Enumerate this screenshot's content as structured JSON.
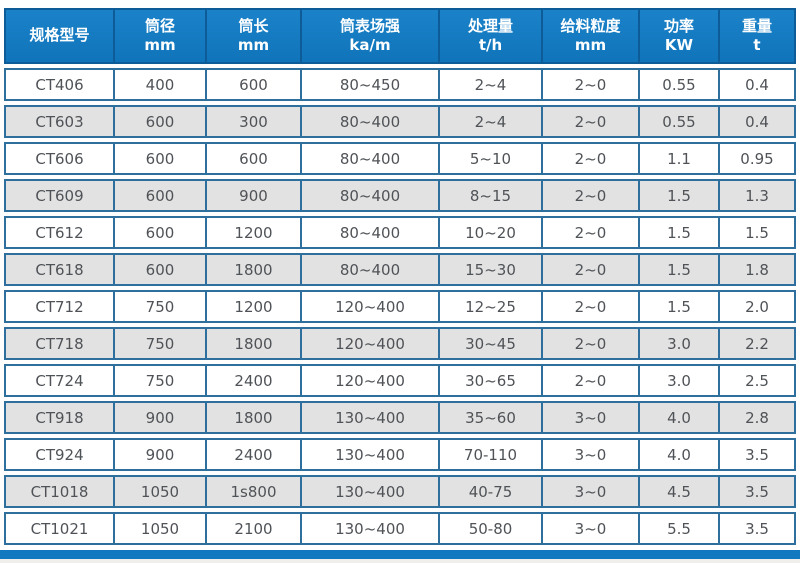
{
  "colors": {
    "page_bg": "#ffffff",
    "header_bg_top": "#1b82c9",
    "header_bg": "#1074ba",
    "header_border": "#0d5c98",
    "header_text": "#ffffff",
    "cell_border": "#2e6f9d",
    "row_bg": "#ffffff",
    "row_alt_bg": "#e3e2e2",
    "body_text": "#4f5357",
    "footer_bar": "#1278bf",
    "page_strip": "#f0eeea"
  },
  "table": {
    "columns": [
      {
        "label": "规格型号",
        "unit": ""
      },
      {
        "label": "筒径",
        "unit": "mm"
      },
      {
        "label": "筒长",
        "unit": "mm"
      },
      {
        "label": "筒表场强",
        "unit": "ka/m"
      },
      {
        "label": "处理量",
        "unit": "t/h"
      },
      {
        "label": "给料粒度",
        "unit": "mm"
      },
      {
        "label": "功率",
        "unit": "KW"
      },
      {
        "label": "重量",
        "unit": "t"
      }
    ],
    "rows": [
      [
        "CT406",
        "400",
        "600",
        "80~450",
        "2~4",
        "2~0",
        "0.55",
        "0.4"
      ],
      [
        "CT603",
        "600",
        "300",
        "80~400",
        "2~4",
        "2~0",
        "0.55",
        "0.4"
      ],
      [
        "CT606",
        "600",
        "600",
        "80~400",
        "5~10",
        "2~0",
        "1.1",
        "0.95"
      ],
      [
        "CT609",
        "600",
        "900",
        "80~400",
        "8~15",
        "2~0",
        "1.5",
        "1.3"
      ],
      [
        "CT612",
        "600",
        "1200",
        "80~400",
        "10~20",
        "2~0",
        "1.5",
        "1.5"
      ],
      [
        "CT618",
        "600",
        "1800",
        "80~400",
        "15~30",
        "2~0",
        "1.5",
        "1.8"
      ],
      [
        "CT712",
        "750",
        "1200",
        "120~400",
        "12~25",
        "2~0",
        "1.5",
        "2.0"
      ],
      [
        "CT718",
        "750",
        "1800",
        "120~400",
        "30~45",
        "2~0",
        "3.0",
        "2.2"
      ],
      [
        "CT724",
        "750",
        "2400",
        "120~400",
        "30~65",
        "2~0",
        "3.0",
        "2.5"
      ],
      [
        "CT918",
        "900",
        "1800",
        "130~400",
        "35~60",
        "3~0",
        "4.0",
        "2.8"
      ],
      [
        "CT924",
        "900",
        "2400",
        "130~400",
        "70-110",
        "3~0",
        "4.0",
        "3.5"
      ],
      [
        "CT1018",
        "1050",
        "1s800",
        "130~400",
        "40-75",
        "3~0",
        "4.5",
        "3.5"
      ],
      [
        "CT1021",
        "1050",
        "2100",
        "130~400",
        "50-80",
        "3~0",
        "5.5",
        "3.5"
      ]
    ]
  }
}
